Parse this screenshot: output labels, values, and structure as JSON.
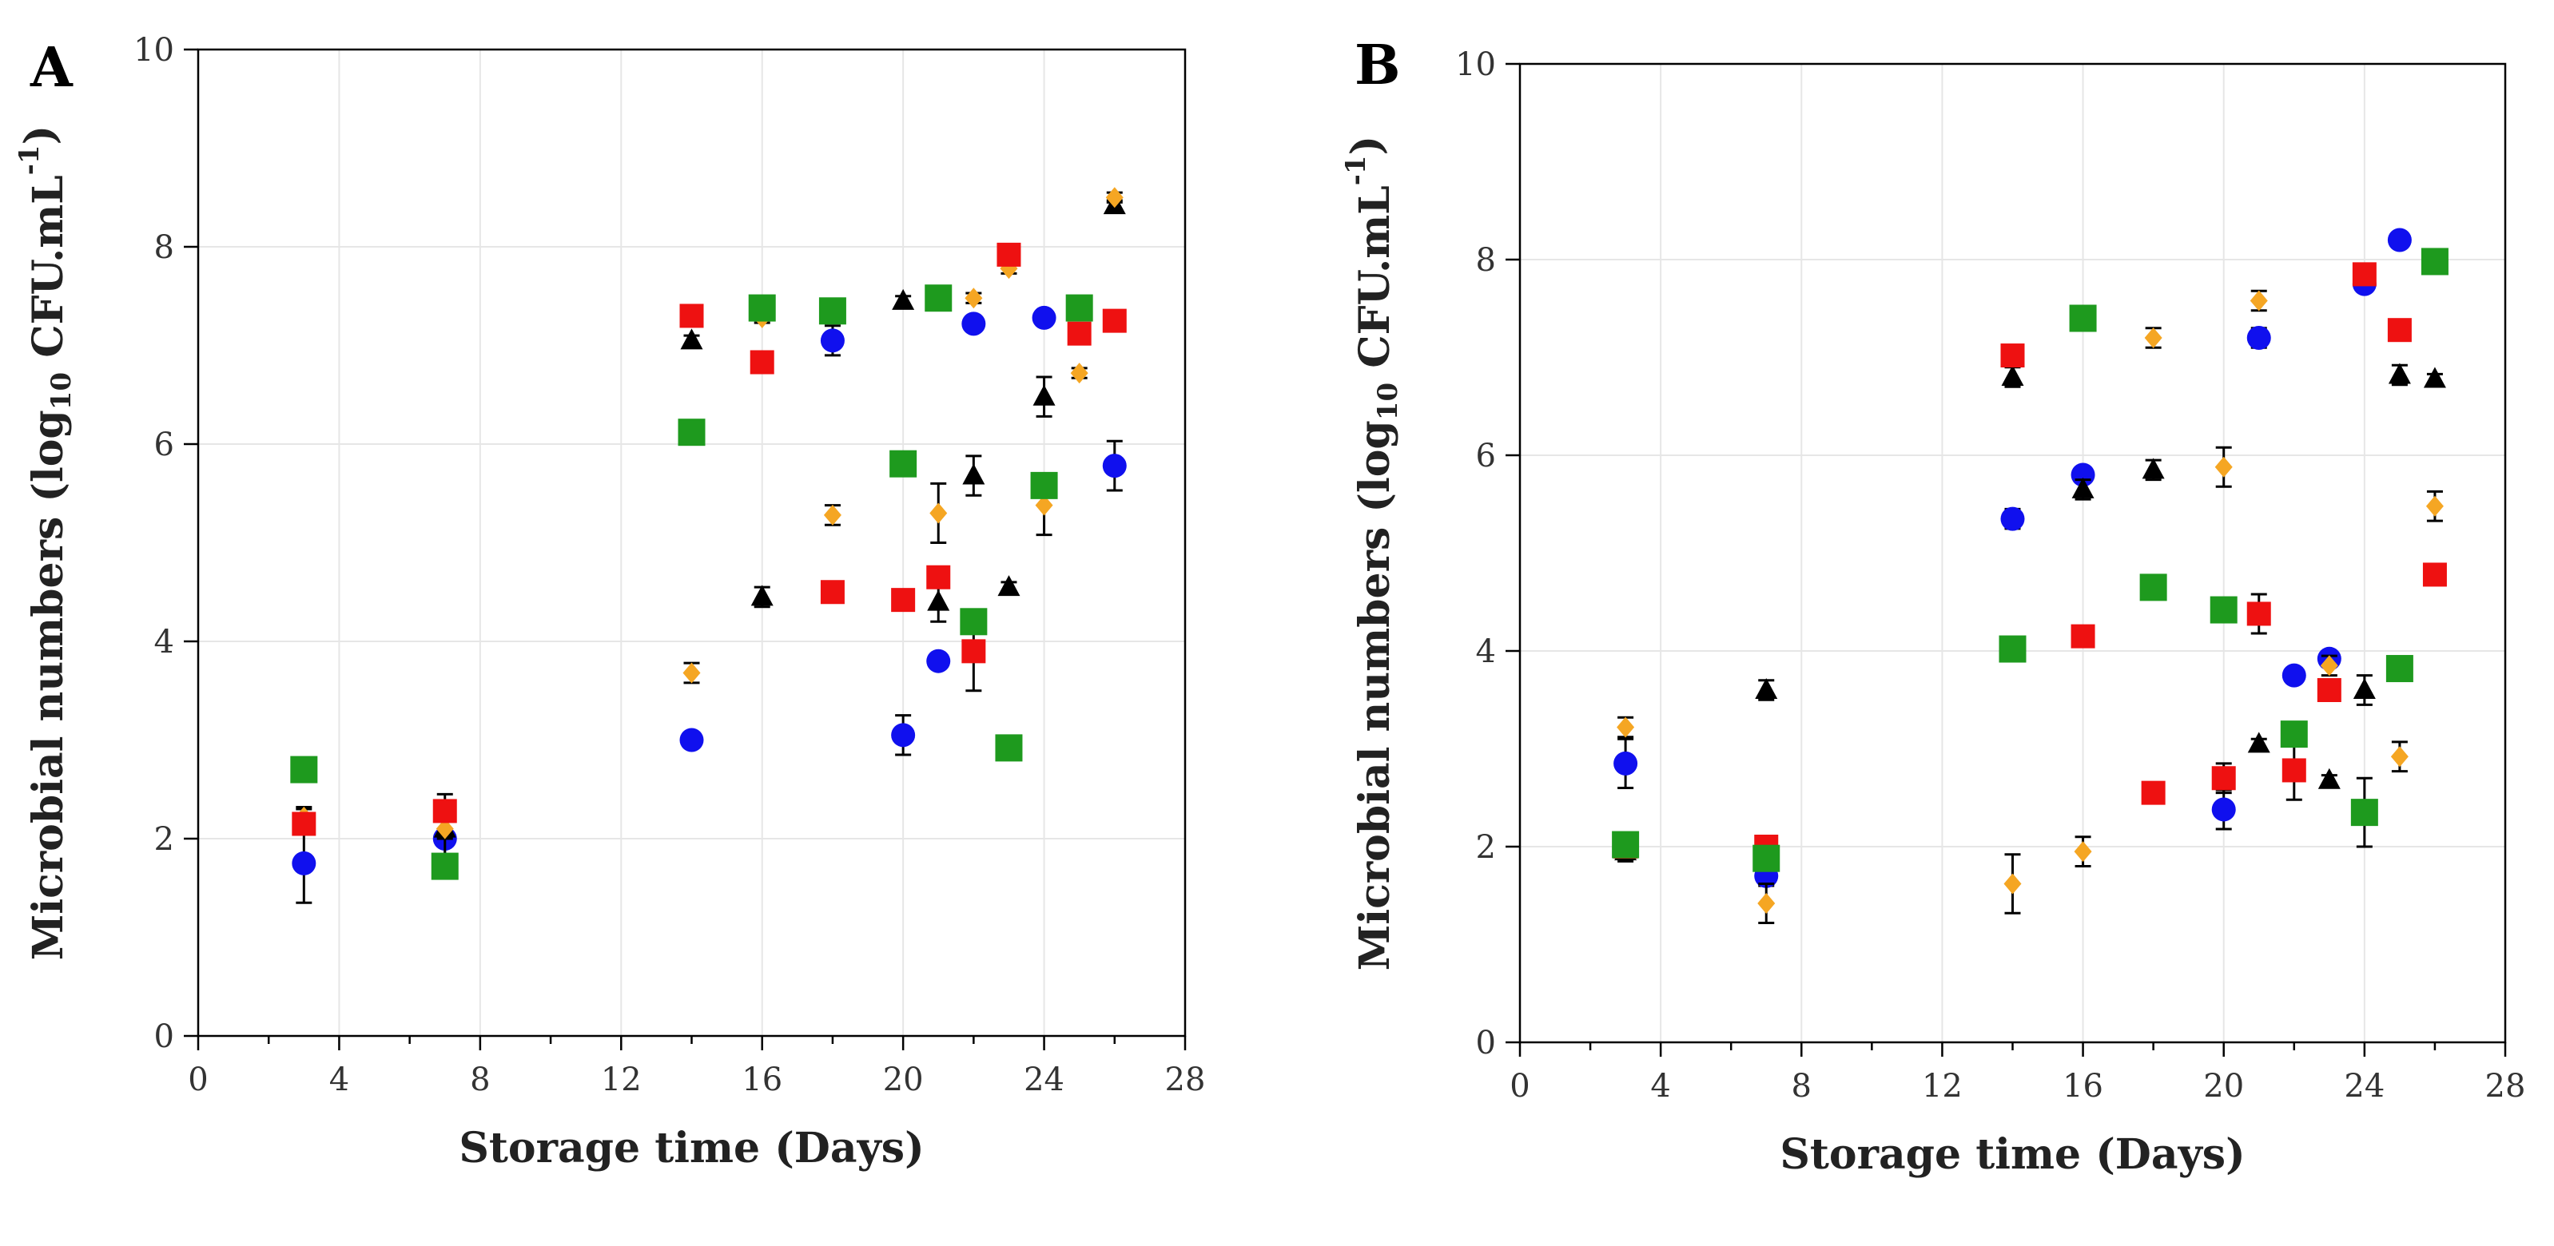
{
  "colors": {
    "blue": "#1010ee",
    "black": "#000000",
    "orange": "#f5a623",
    "red": "#ee1111",
    "green": "#1e9a1e"
  },
  "chart_data": [
    {
      "type": "scatter",
      "panel_label": "A",
      "xlabel": "Storage time (Days)",
      "ylabel_main": "Microbial numbers (log",
      "ylabel_sub": "10",
      "ylabel_mid": " CFU.mL",
      "ylabel_sup": "-1",
      "ylabel_end": ")",
      "xlim": [
        0,
        28
      ],
      "ylim": [
        0,
        10
      ],
      "x_ticks": [
        "0",
        "4",
        "8",
        "12",
        "16",
        "20",
        "24",
        "28"
      ],
      "y_ticks": [
        "0",
        "2",
        "4",
        "6",
        "8",
        "10"
      ],
      "grid": true,
      "series": [
        {
          "name": "blue-circle",
          "marker": "circle",
          "color": "#1010ee",
          "points": [
            [
              3,
              1.75,
              0.4
            ],
            [
              7,
              2.0,
              0.2
            ],
            [
              14,
              3.0,
              0.05
            ],
            [
              18,
              7.05,
              0.15
            ],
            [
              20,
              3.05,
              0.2
            ],
            [
              21,
              3.8,
              0.05
            ],
            [
              22,
              7.22,
              0.05
            ],
            [
              24,
              7.28,
              0.05
            ],
            [
              26,
              5.78,
              0.25
            ]
          ]
        },
        {
          "name": "black-triangle",
          "marker": "triangle",
          "color": "#000000",
          "points": [
            [
              3,
              2.2,
              0.1
            ],
            [
              7,
              2.1,
              0.35
            ],
            [
              14,
              7.05,
              0.05
            ],
            [
              16,
              4.45,
              0.1
            ],
            [
              20,
              7.45,
              0.05
            ],
            [
              21,
              4.4,
              0.2
            ],
            [
              22,
              5.68,
              0.2
            ],
            [
              23,
              4.55,
              0.05
            ],
            [
              24,
              6.48,
              0.2
            ],
            [
              26,
              8.42,
              0.05
            ]
          ]
        },
        {
          "name": "orange-diamond",
          "marker": "diamond",
          "color": "#f5a623",
          "points": [
            [
              3,
              2.22,
              0.1
            ],
            [
              7,
              2.1,
              0.1
            ],
            [
              14,
              3.68,
              0.1
            ],
            [
              16,
              7.28,
              0.05
            ],
            [
              18,
              5.28,
              0.1
            ],
            [
              21,
              5.3,
              0.3
            ],
            [
              22,
              7.48,
              0.05
            ],
            [
              23,
              7.78,
              0.05
            ],
            [
              24,
              5.38,
              0.3
            ],
            [
              25,
              6.72,
              0.05
            ],
            [
              26,
              8.5,
              0.05
            ]
          ]
        },
        {
          "name": "red-square",
          "marker": "square",
          "color": "#ee1111",
          "points": [
            [
              3,
              2.15,
              0.05
            ],
            [
              7,
              2.28,
              0.1
            ],
            [
              14,
              7.3,
              0.1
            ],
            [
              16,
              6.83,
              0.05
            ],
            [
              18,
              4.5,
              0.05
            ],
            [
              20,
              4.42,
              0.05
            ],
            [
              21,
              4.65,
              0.05
            ],
            [
              22,
              3.9,
              0.4
            ],
            [
              23,
              7.92,
              0.1
            ],
            [
              25,
              7.12,
              0.1
            ],
            [
              26,
              7.25,
              0.05
            ]
          ]
        },
        {
          "name": "green-square",
          "marker": "bigsquare",
          "color": "#1e9a1e",
          "points": [
            [
              3,
              2.7,
              0
            ],
            [
              7,
              1.72,
              0
            ],
            [
              14,
              6.12,
              0
            ],
            [
              16,
              7.38,
              0
            ],
            [
              18,
              7.35,
              0
            ],
            [
              20,
              5.8,
              0
            ],
            [
              21,
              7.48,
              0
            ],
            [
              22,
              4.2,
              0
            ],
            [
              23,
              2.92,
              0
            ],
            [
              24,
              5.58,
              0
            ],
            [
              25,
              7.38,
              0
            ]
          ]
        }
      ]
    },
    {
      "type": "scatter",
      "panel_label": "B",
      "xlabel": "Storage time (Days)",
      "ylabel_main": "Microbial numbers (log",
      "ylabel_sub": "10",
      "ylabel_mid": " CFU.mL",
      "ylabel_sup": "-1",
      "ylabel_end": ")",
      "xlim": [
        0,
        28
      ],
      "ylim": [
        0,
        10
      ],
      "x_ticks": [
        "0",
        "4",
        "8",
        "12",
        "16",
        "20",
        "24",
        "28"
      ],
      "y_ticks": [
        "0",
        "2",
        "4",
        "6",
        "8",
        "10"
      ],
      "grid": true,
      "series": [
        {
          "name": "blue-circle",
          "marker": "circle",
          "color": "#1010ee",
          "points": [
            [
              3,
              2.85,
              0.25
            ],
            [
              7,
              1.7,
              0.1
            ],
            [
              14,
              5.35,
              0.1
            ],
            [
              16,
              5.8,
              0.05
            ],
            [
              20,
              2.38,
              0.2
            ],
            [
              21,
              7.2,
              0.1
            ],
            [
              22,
              3.75,
              0.05
            ],
            [
              23,
              3.92,
              0.05
            ],
            [
              24,
              7.75,
              0.05
            ],
            [
              25,
              8.2,
              0.05
            ]
          ]
        },
        {
          "name": "black-triangle",
          "marker": "triangle",
          "color": "#000000",
          "points": [
            [
              3,
              1.95,
              0.1
            ],
            [
              7,
              3.6,
              0.1
            ],
            [
              14,
              6.8,
              0.1
            ],
            [
              16,
              5.65,
              0.1
            ],
            [
              18,
              5.85,
              0.1
            ],
            [
              21,
              3.05,
              0.05
            ],
            [
              23,
              2.68,
              0.05
            ],
            [
              24,
              3.6,
              0.15
            ],
            [
              25,
              6.82,
              0.1
            ],
            [
              26,
              6.78,
              0.05
            ]
          ]
        },
        {
          "name": "orange-diamond",
          "marker": "diamond",
          "color": "#f5a623",
          "points": [
            [
              3,
              3.22,
              0.1
            ],
            [
              7,
              1.42,
              0.2
            ],
            [
              14,
              1.62,
              0.3
            ],
            [
              16,
              1.95,
              0.15
            ],
            [
              18,
              7.2,
              0.1
            ],
            [
              20,
              5.88,
              0.2
            ],
            [
              21,
              7.58,
              0.1
            ],
            [
              23,
              3.85,
              0.1
            ],
            [
              25,
              2.92,
              0.15
            ],
            [
              26,
              5.48,
              0.15
            ]
          ]
        },
        {
          "name": "red-square",
          "marker": "square",
          "color": "#ee1111",
          "points": [
            [
              3,
              2.0,
              0.05
            ],
            [
              7,
              2.0,
              0.05
            ],
            [
              14,
              7.02,
              0.05
            ],
            [
              16,
              4.15,
              0.05
            ],
            [
              18,
              2.55,
              0.05
            ],
            [
              20,
              2.7,
              0.15
            ],
            [
              21,
              4.38,
              0.2
            ],
            [
              22,
              2.78,
              0.3
            ],
            [
              23,
              3.6,
              0.05
            ],
            [
              24,
              7.85,
              0.05
            ],
            [
              25,
              7.28,
              0.05
            ],
            [
              26,
              4.78,
              0.05
            ]
          ]
        },
        {
          "name": "green-square",
          "marker": "bigsquare",
          "color": "#1e9a1e",
          "points": [
            [
              3,
              2.02,
              0
            ],
            [
              7,
              1.88,
              0
            ],
            [
              14,
              4.02,
              0
            ],
            [
              16,
              7.4,
              0
            ],
            [
              18,
              4.65,
              0
            ],
            [
              20,
              4.42,
              0
            ],
            [
              22,
              3.15,
              0
            ],
            [
              24,
              2.35,
              0.35
            ],
            [
              25,
              3.82,
              0
            ],
            [
              26,
              7.98,
              0
            ]
          ]
        }
      ]
    }
  ]
}
